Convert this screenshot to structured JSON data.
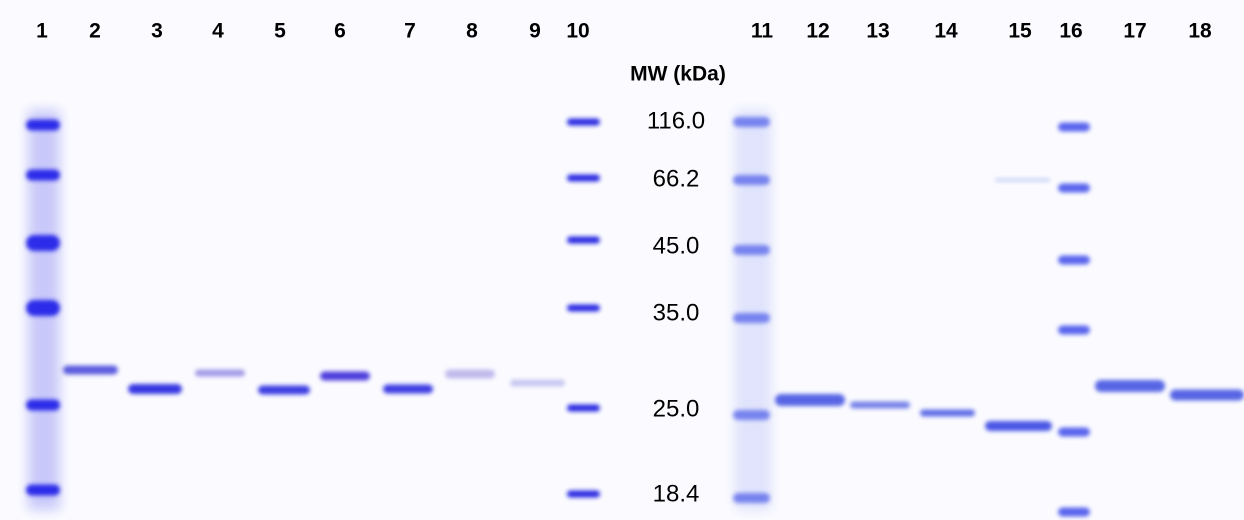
{
  "lanes": [
    "1",
    "2",
    "3",
    "4",
    "5",
    "6",
    "7",
    "8",
    "9",
    "10",
    "11",
    "12",
    "13",
    "14",
    "15",
    "16",
    "17",
    "18"
  ],
  "marker": {
    "title": "MW (kDa)",
    "labels": [
      "116.0",
      "66.2",
      "45.0",
      "35.0",
      "25.0",
      "18.4"
    ]
  }
}
